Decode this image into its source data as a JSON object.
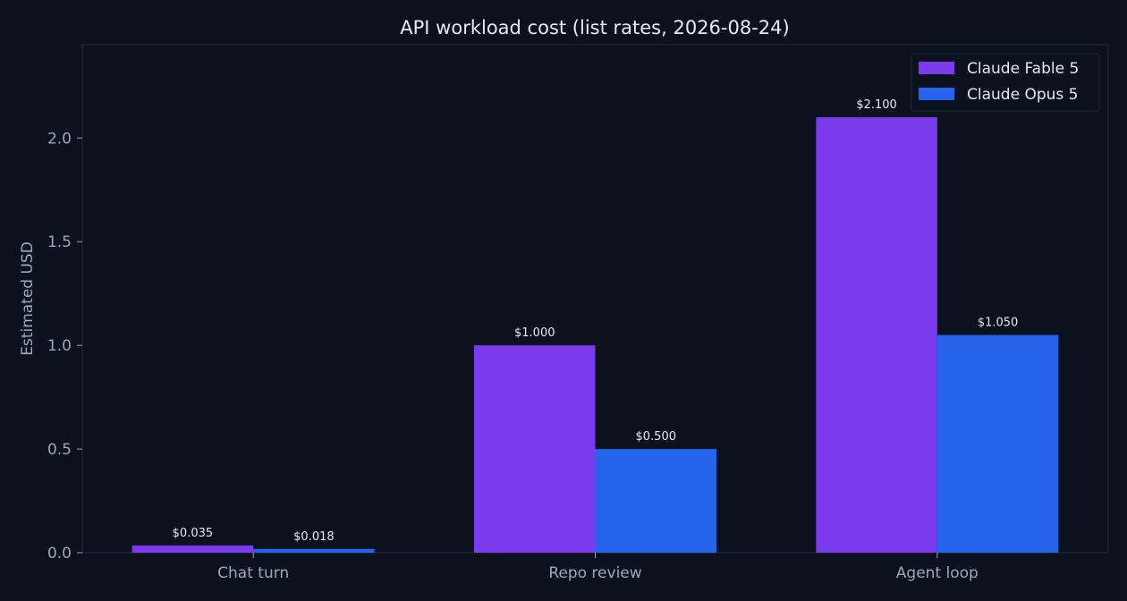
{
  "chart_data": {
    "type": "bar",
    "title": "API workload cost (list rates, 2026-08-24)",
    "xlabel": "",
    "ylabel": "Estimated USD",
    "categories": [
      "Chat turn",
      "Repo review",
      "Agent loop"
    ],
    "series": [
      {
        "name": "Claude Fable 5",
        "color": "#7c3aed",
        "values": [
          0.035,
          1.0,
          2.1
        ],
        "labels": [
          "$0.035",
          "$1.000",
          "$2.100"
        ]
      },
      {
        "name": "Claude Opus 5",
        "color": "#2563eb",
        "values": [
          0.018,
          0.5,
          1.05
        ],
        "labels": [
          "$0.018",
          "$0.500",
          "$1.050"
        ]
      }
    ],
    "ylim": [
      0,
      2.45
    ],
    "yticks": [
      0.0,
      0.5,
      1.0,
      1.5,
      2.0
    ],
    "ytick_labels": [
      "0.0",
      "0.5",
      "1.0",
      "1.5",
      "2.0"
    ],
    "grid": false,
    "legend": "top-right"
  }
}
